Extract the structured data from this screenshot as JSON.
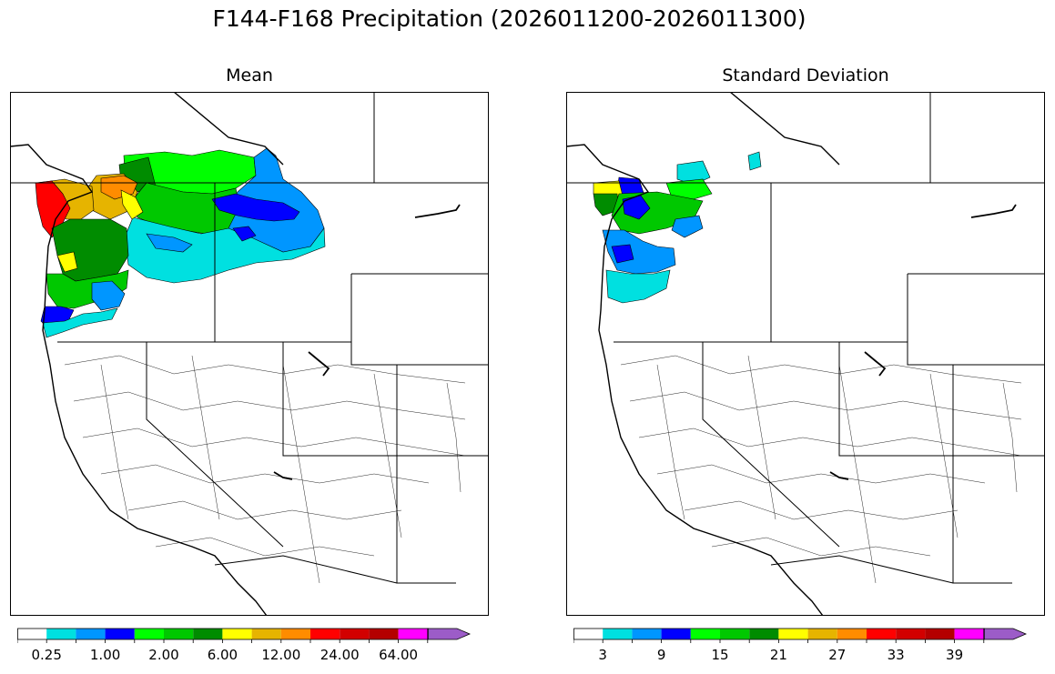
{
  "title": "F144-F168 Precipitation (2026011200-2026011300)",
  "panels": {
    "left": {
      "title": "Mean",
      "tick_labels": [
        "0.25",
        "1.00",
        "2.00",
        "6.00",
        "12.00",
        "24.00",
        "64.00"
      ]
    },
    "right": {
      "title": "Standard Deviation",
      "tick_labels": [
        "3",
        "9",
        "15",
        "21",
        "27",
        "33",
        "39"
      ]
    }
  },
  "colorbar_colors": [
    "#ffffff",
    "#00e0e0",
    "#0096ff",
    "#0000ff",
    "#00ff00",
    "#00c800",
    "#008c00",
    "#ffff00",
    "#e6b400",
    "#ff8c00",
    "#ff0000",
    "#d20000",
    "#b40000",
    "#ff00ff",
    "#9c5cc8"
  ]
}
